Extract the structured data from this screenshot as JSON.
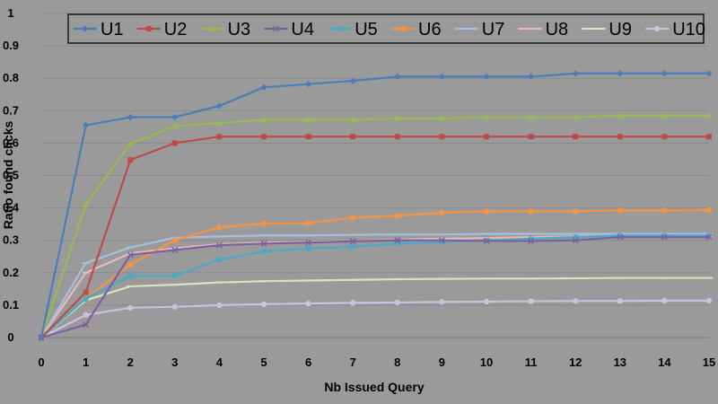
{
  "chart_data": {
    "type": "line",
    "title": "",
    "xlabel": "Nb Issued Query",
    "ylabel": "Ratio found clicks",
    "xlim": [
      0,
      15
    ],
    "ylim": [
      0,
      1
    ],
    "x": [
      0,
      1,
      2,
      3,
      4,
      5,
      6,
      7,
      8,
      9,
      10,
      11,
      12,
      13,
      14,
      15
    ],
    "x_ticks": [
      "0",
      "1",
      "2",
      "3",
      "4",
      "5",
      "6",
      "7",
      "8",
      "9",
      "10",
      "11",
      "12",
      "13",
      "14",
      "15"
    ],
    "y_ticks": [
      "0",
      "0.1",
      "0.2",
      "0.3",
      "0.4",
      "0.5",
      "0.6",
      "0.7",
      "0.8",
      "0.9",
      "1"
    ],
    "grid": "horizontal",
    "legend_position": "top",
    "series": [
      {
        "name": "U1",
        "color": "#4a7ebb",
        "marker": "diamond",
        "values": [
          0,
          0.655,
          0.68,
          0.68,
          0.715,
          0.772,
          0.782,
          0.792,
          0.805,
          0.805,
          0.805,
          0.805,
          0.815,
          0.815,
          0.815,
          0.815
        ]
      },
      {
        "name": "U2",
        "color": "#be4b48",
        "marker": "square",
        "values": [
          0,
          0.14,
          0.548,
          0.6,
          0.62,
          0.62,
          0.62,
          0.62,
          0.62,
          0.62,
          0.62,
          0.62,
          0.62,
          0.62,
          0.62,
          0.62
        ]
      },
      {
        "name": "U3",
        "color": "#98b954",
        "marker": "triangle",
        "values": [
          0,
          0.41,
          0.598,
          0.652,
          0.662,
          0.672,
          0.672,
          0.672,
          0.676,
          0.676,
          0.68,
          0.68,
          0.68,
          0.685,
          0.685,
          0.685
        ]
      },
      {
        "name": "U4",
        "color": "#7d60a0",
        "marker": "x",
        "values": [
          0,
          0.04,
          0.255,
          0.27,
          0.285,
          0.29,
          0.293,
          0.297,
          0.3,
          0.3,
          0.298,
          0.298,
          0.3,
          0.31,
          0.31,
          0.31
        ]
      },
      {
        "name": "U5",
        "color": "#46aac5",
        "marker": "star",
        "values": [
          0,
          0.12,
          0.19,
          0.19,
          0.24,
          0.265,
          0.275,
          0.28,
          0.29,
          0.295,
          0.3,
          0.305,
          0.31,
          0.315,
          0.315,
          0.315
        ]
      },
      {
        "name": "U6",
        "color": "#f69240",
        "marker": "circle",
        "values": [
          0,
          0.12,
          0.225,
          0.3,
          0.34,
          0.352,
          0.353,
          0.37,
          0.376,
          0.385,
          0.39,
          0.39,
          0.39,
          0.392,
          0.392,
          0.393
        ]
      },
      {
        "name": "U7",
        "color": "#a7bfde",
        "marker": "dash",
        "values": [
          0,
          0.23,
          0.278,
          0.308,
          0.312,
          0.315,
          0.315,
          0.317,
          0.318,
          0.318,
          0.32,
          0.32,
          0.32,
          0.32,
          0.32,
          0.32
        ]
      },
      {
        "name": "U8",
        "color": "#e6b9b8",
        "marker": "dash",
        "values": [
          0,
          0.2,
          0.26,
          0.275,
          0.288,
          0.293,
          0.295,
          0.298,
          0.302,
          0.305,
          0.307,
          0.31,
          0.312,
          0.315,
          0.315,
          0.315
        ]
      },
      {
        "name": "U9",
        "color": "#d7e4bd",
        "marker": "dash",
        "values": [
          0,
          0.115,
          0.158,
          0.163,
          0.17,
          0.174,
          0.176,
          0.178,
          0.18,
          0.181,
          0.182,
          0.182,
          0.183,
          0.184,
          0.184,
          0.184
        ]
      },
      {
        "name": "U10",
        "color": "#ccc1da",
        "marker": "circle",
        "values": [
          0,
          0.07,
          0.092,
          0.095,
          0.1,
          0.103,
          0.105,
          0.107,
          0.108,
          0.11,
          0.111,
          0.112,
          0.113,
          0.113,
          0.114,
          0.114
        ]
      }
    ]
  }
}
